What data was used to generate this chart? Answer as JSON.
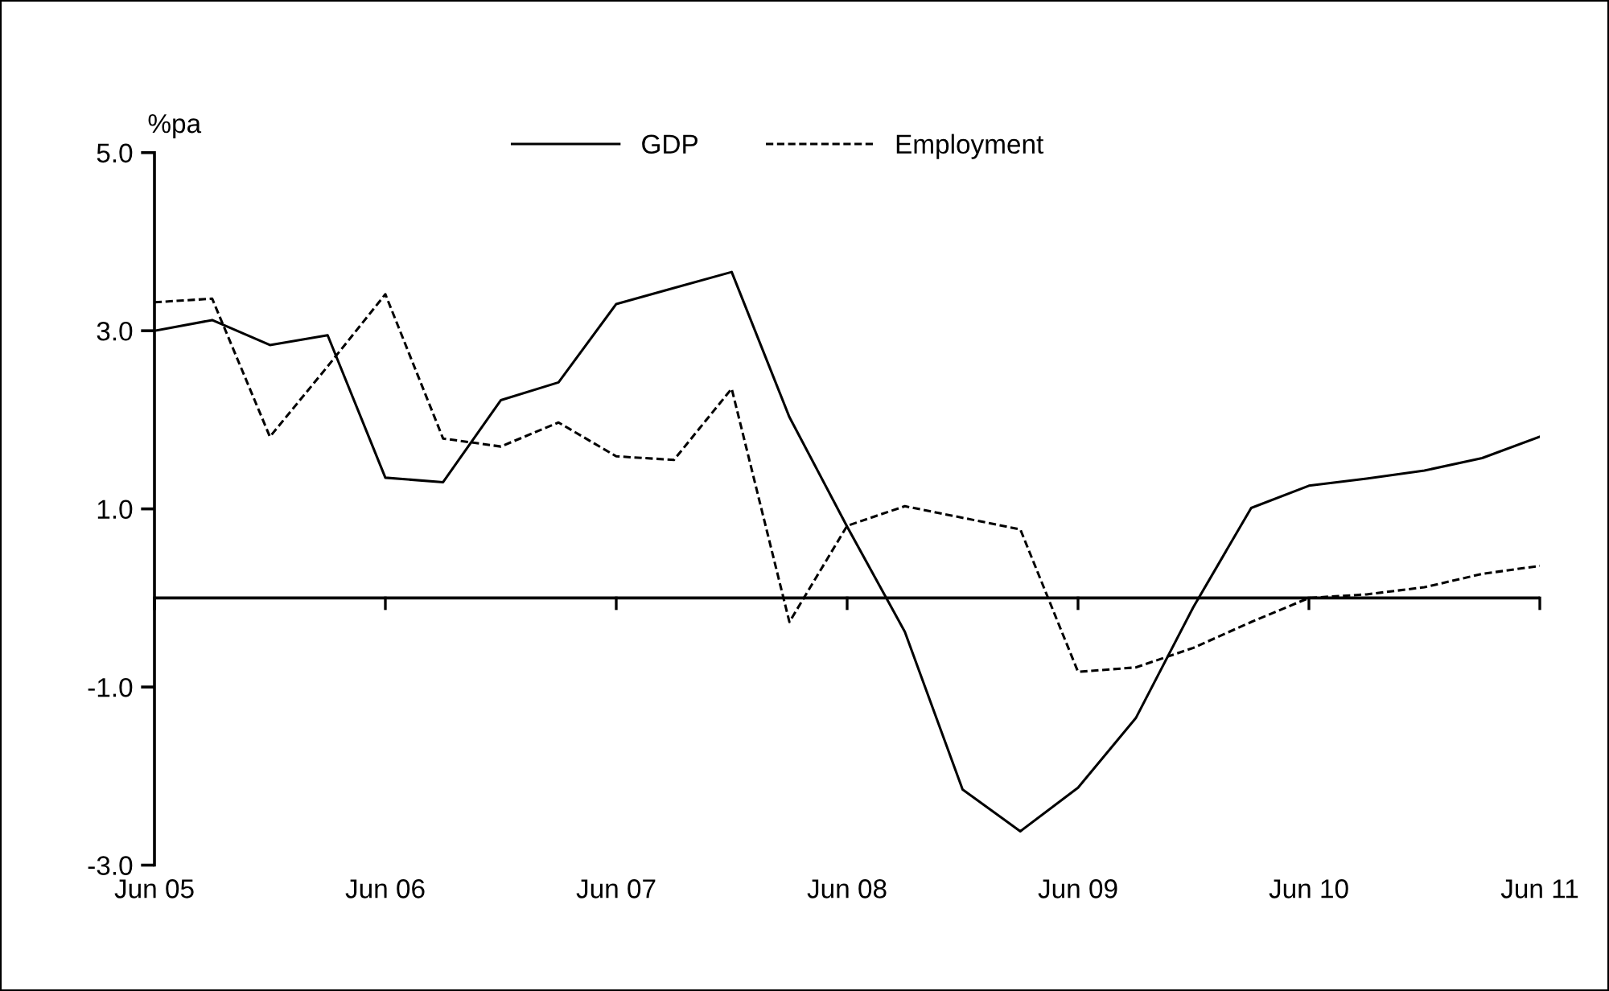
{
  "chart_data": {
    "type": "line",
    "ylabel": "%pa",
    "categories": [
      "Jun 05",
      null,
      null,
      null,
      "Jun 06",
      null,
      null,
      null,
      "Jun 07",
      null,
      null,
      null,
      "Jun 08",
      null,
      null,
      null,
      "Jun 09",
      null,
      null,
      null,
      "Jun 10",
      null,
      null,
      null,
      "Jun 11"
    ],
    "series": [
      {
        "name": "GDP",
        "color": "#000000",
        "line_style": "solid",
        "values": [
          3.0,
          3.12,
          2.84,
          2.95,
          1.35,
          1.3,
          2.22,
          2.42,
          3.3,
          3.48,
          3.66,
          2.03,
          0.8,
          -0.38,
          -2.15,
          -2.62,
          -2.13,
          -1.35,
          -0.1,
          1.01,
          1.26,
          1.34,
          1.43,
          1.57,
          1.81
        ]
      },
      {
        "name": "Employment",
        "color": "#000000",
        "line_style": "dashed",
        "values": [
          3.32,
          3.36,
          1.81,
          2.6,
          3.41,
          1.79,
          1.7,
          1.97,
          1.59,
          1.55,
          2.35,
          -0.27,
          0.81,
          1.03,
          0.9,
          0.77,
          -0.83,
          -0.78,
          -0.56,
          -0.27,
          0.0,
          0.04,
          0.12,
          0.27,
          0.36
        ]
      }
    ],
    "ylim": [
      -3,
      5
    ],
    "yticks": [
      {
        "value": 5,
        "label": "5.0"
      },
      {
        "value": 3,
        "label": "3.0"
      },
      {
        "value": 1,
        "label": "1.0"
      },
      {
        "value": -1,
        "label": "-1.0"
      },
      {
        "value": -3,
        "label": "-3.0"
      }
    ],
    "ref_lines": [
      {
        "axis": "y",
        "value": 0,
        "color": "#000000"
      }
    ],
    "legend": "top",
    "grid": false,
    "marker": "none"
  }
}
